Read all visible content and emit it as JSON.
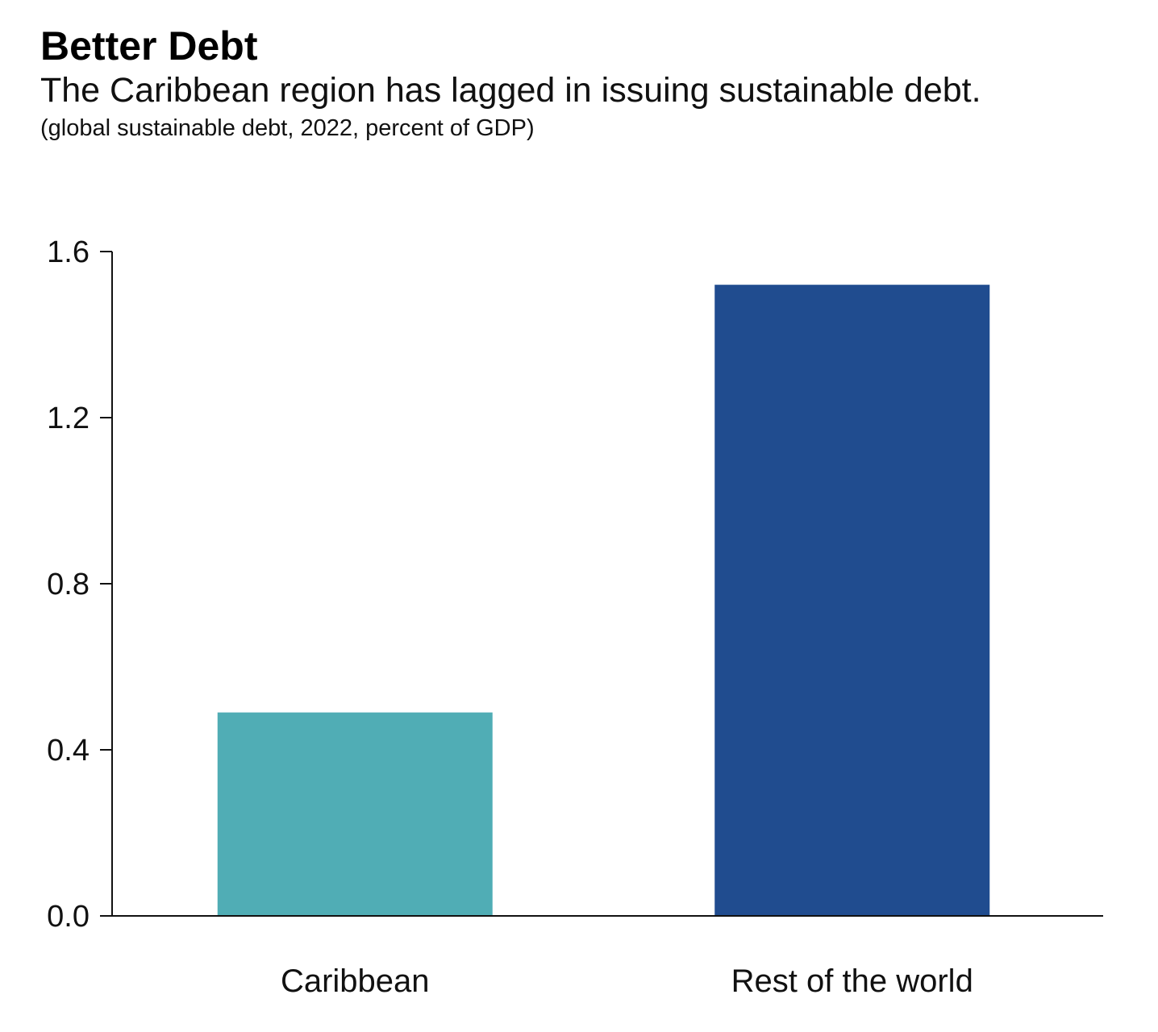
{
  "chart_data": {
    "type": "bar",
    "title": "Better Debt",
    "subtitle": "The Caribbean region has lagged in issuing sustainable debt.",
    "note": "(global sustainable debt, 2022, percent of GDP)",
    "categories": [
      "Caribbean",
      "Rest of the world"
    ],
    "values": [
      0.49,
      1.52
    ],
    "colors": [
      "#50ADB5",
      "#204C8F"
    ],
    "ylim": [
      0,
      1.6
    ],
    "yticks": [
      0.0,
      0.4,
      0.8,
      1.2,
      1.6
    ],
    "ytick_labels": [
      "0.0",
      "0.4",
      "0.8",
      "1.2",
      "1.6"
    ],
    "grid": false,
    "legend": "none",
    "axis_color": "#111111"
  }
}
